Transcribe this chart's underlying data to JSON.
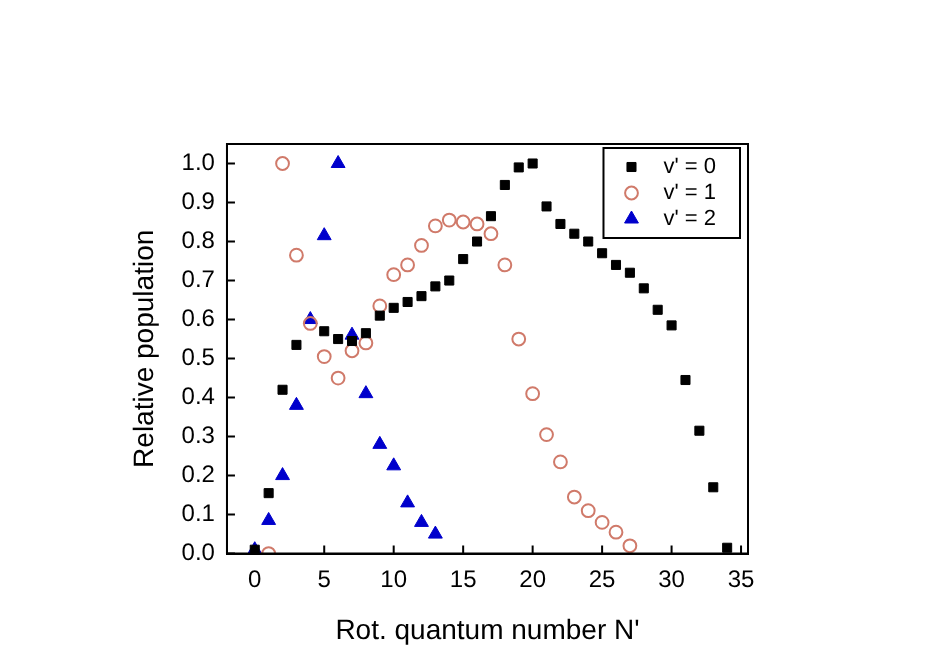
{
  "chart_data": {
    "type": "scatter",
    "xlabel": "Rot. quantum number N'",
    "ylabel": "Relative population",
    "xlim": [
      -2,
      35.5
    ],
    "xticks": [
      0,
      5,
      10,
      15,
      20,
      25,
      30,
      35
    ],
    "ylim": [
      0,
      1.05
    ],
    "yticks": [
      {
        "value": 0,
        "label": "0.0"
      },
      {
        "value": 0.1,
        "label": "0.1"
      },
      {
        "value": 0.2,
        "label": "0.2"
      },
      {
        "value": 0.3,
        "label": "0.3"
      },
      {
        "value": 0.4,
        "label": "0.4"
      },
      {
        "value": 0.5,
        "label": "0.5"
      },
      {
        "value": 0.6,
        "label": "0.6"
      },
      {
        "value": 0.7,
        "label": "0.7"
      },
      {
        "value": 0.8,
        "label": "0.8"
      },
      {
        "value": 0.9,
        "label": "0.9"
      },
      {
        "value": 1,
        "label": "1.0"
      }
    ],
    "grid": false,
    "legend": "top right",
    "series": [
      {
        "name": "v' = 0",
        "color": "#000000",
        "marker": "square",
        "x": [
          0,
          1,
          2,
          3,
          5,
          6,
          7,
          8,
          9,
          10,
          11,
          12,
          13,
          14,
          15,
          16,
          17,
          18,
          19,
          20,
          21,
          22,
          23,
          24,
          25,
          26,
          27,
          28,
          29,
          30,
          31,
          32,
          33,
          34
        ],
        "values": [
          0.01,
          0.155,
          0.42,
          0.535,
          0.57,
          0.55,
          0.545,
          0.565,
          0.61,
          0.63,
          0.645,
          0.66,
          0.685,
          0.7,
          0.755,
          0.8,
          0.865,
          0.945,
          0.99,
          1.0,
          0.89,
          0.845,
          0.82,
          0.8,
          0.77,
          0.74,
          0.72,
          0.68,
          0.625,
          0.585,
          0.445,
          0.315,
          0.17,
          0.015
        ]
      },
      {
        "name": "v' = 1",
        "color": "#d07a6a",
        "marker": "circle",
        "x": [
          1,
          2,
          3,
          4,
          5,
          6,
          7,
          8,
          9,
          10,
          11,
          12,
          13,
          14,
          15,
          16,
          17,
          18,
          19,
          20,
          21,
          22,
          23,
          24,
          25,
          26,
          27
        ],
        "values": [
          0.0,
          1.0,
          0.765,
          0.59,
          0.505,
          0.45,
          0.52,
          0.54,
          0.635,
          0.715,
          0.74,
          0.79,
          0.84,
          0.855,
          0.85,
          0.845,
          0.82,
          0.74,
          0.55,
          0.41,
          0.305,
          0.235,
          0.145,
          0.11,
          0.08,
          0.055,
          0.02
        ]
      },
      {
        "name": "v' = 2",
        "color": "#0000cc",
        "marker": "triangle",
        "x": [
          0,
          1,
          2,
          3,
          4,
          5,
          6,
          7,
          8,
          9,
          10,
          11,
          12,
          13
        ],
        "values": [
          0.01,
          0.085,
          0.2,
          0.38,
          0.6,
          0.815,
          1.0,
          0.56,
          0.41,
          0.28,
          0.225,
          0.13,
          0.08,
          0.05
        ]
      }
    ]
  }
}
